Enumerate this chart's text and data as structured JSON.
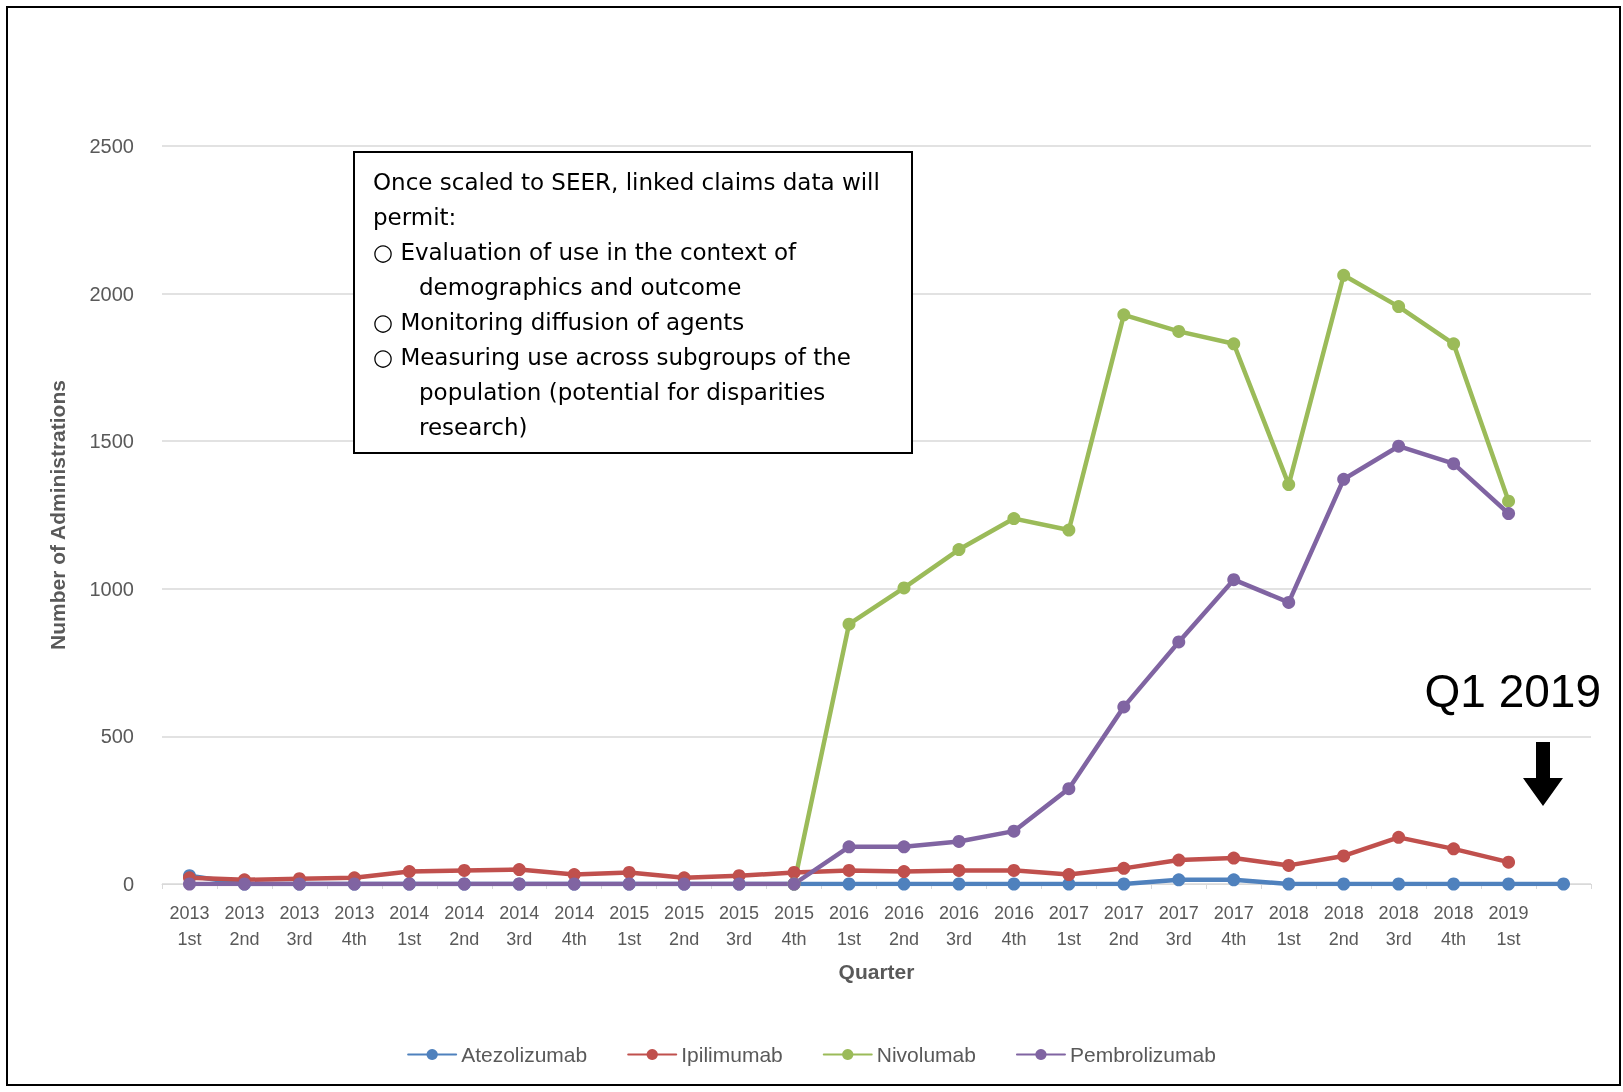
{
  "chart_data": {
    "type": "line",
    "xlabel": "Quarter",
    "ylabel": "Number of Administrations",
    "categories": [
      "2013\n1st",
      "2013\n2nd",
      "2013\n3rd",
      "2013\n4th",
      "2014\n1st",
      "2014\n2nd",
      "2014\n3rd",
      "2014\n4th",
      "2015\n1st",
      "2015\n2nd",
      "2015\n3rd",
      "2015\n4th",
      "2016\n1st",
      "2016\n2nd",
      "2016\n3rd",
      "2016\n4th",
      "2017\n1st",
      "2017\n2nd",
      "2017\n3rd",
      "2017\n4th",
      "2018\n1st",
      "2018\n2nd",
      "2018\n3rd",
      "2018\n4th",
      "2019\n1st",
      null
    ],
    "series": [
      {
        "name": "Atezolizumab",
        "color": "#4f81bd",
        "values": [
          28,
          0,
          0,
          0,
          0,
          0,
          0,
          0,
          0,
          0,
          0,
          0,
          0,
          0,
          0,
          0,
          0,
          0,
          14,
          14,
          0,
          0,
          0,
          0,
          0,
          0
        ]
      },
      {
        "name": "Ipilimumab",
        "color": "#c0504d",
        "values": [
          21,
          14,
          18,
          21,
          42,
          46,
          49,
          32,
          39,
          21,
          28,
          39,
          46,
          42,
          46,
          46,
          32,
          53,
          81,
          88,
          63,
          95,
          158,
          119,
          74,
          null
        ]
      },
      {
        "name": "Nivolumab",
        "color": "#9bbb59",
        "values": [
          null,
          null,
          null,
          null,
          null,
          null,
          null,
          null,
          null,
          null,
          null,
          0,
          880,
          1003,
          1133,
          1238,
          1199,
          1928,
          1872,
          1830,
          1353,
          2062,
          1956,
          1830,
          1297,
          null
        ]
      },
      {
        "name": "Pembrolizumab",
        "color": "#8064a2",
        "values": [
          0,
          0,
          0,
          0,
          0,
          0,
          0,
          0,
          0,
          0,
          0,
          0,
          126,
          126,
          144,
          179,
          323,
          600,
          820,
          1031,
          954,
          1371,
          1483,
          1424,
          1255,
          null
        ]
      }
    ],
    "ylim": [
      0,
      2500
    ],
    "yticks": [
      0,
      500,
      1000,
      1500,
      2000,
      2500
    ],
    "grid": "y",
    "legend": "bottom",
    "marker": "circle",
    "line_style": "solid",
    "annotations": [
      "Once scaled to SEER, linked claims data will permit:",
      "○ Evaluation of use in the context of demographics and outcome",
      "○ Monitoring diffusion of agents",
      "○ Measuring use across subgroups of the population (potential for disparities research)",
      "Q1 2019"
    ]
  }
}
